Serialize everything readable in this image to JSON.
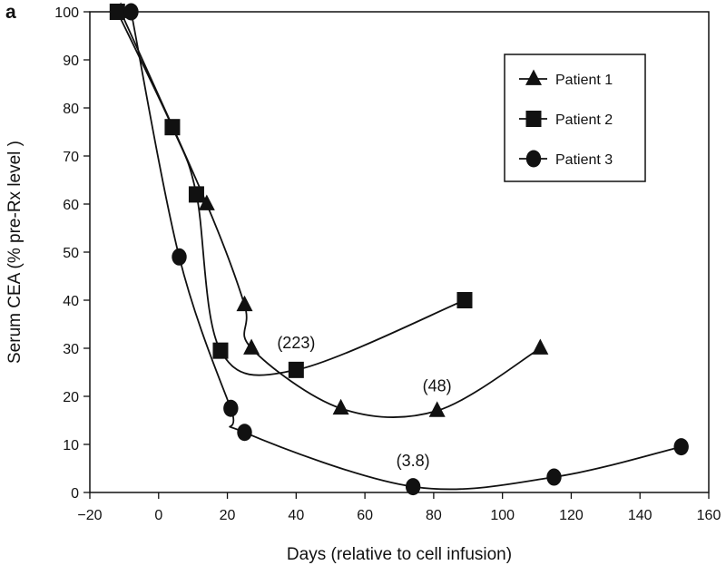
{
  "chart_data": {
    "type": "line",
    "panel_label": "a",
    "title": "",
    "xlabel": "Days (relative to cell infusion)",
    "ylabel": "Serum CEA (% pre-Rx level )",
    "xlim": [
      -20,
      160
    ],
    "ylim": [
      0,
      100
    ],
    "x_ticks": [
      -20,
      0,
      20,
      40,
      60,
      80,
      100,
      120,
      140,
      160
    ],
    "y_ticks": [
      0,
      10,
      20,
      30,
      40,
      50,
      60,
      70,
      80,
      90,
      100
    ],
    "grid": false,
    "legend_position": "top-right",
    "series": [
      {
        "name": "Patient 1",
        "marker": "triangle",
        "x": [
          -11,
          14,
          25,
          27,
          53,
          81,
          111
        ],
        "y": [
          100,
          60,
          39,
          30,
          17.5,
          17,
          30
        ]
      },
      {
        "name": "Patient 2",
        "marker": "square",
        "x": [
          -12,
          4,
          11,
          18,
          40,
          89
        ],
        "y": [
          100,
          76,
          62,
          29.5,
          25.5,
          40
        ]
      },
      {
        "name": "Patient 3",
        "marker": "circle",
        "x": [
          -8,
          6,
          21,
          25,
          74,
          115,
          152
        ],
        "y": [
          100,
          49,
          17.5,
          12.5,
          1.2,
          3.2,
          9.5
        ]
      }
    ],
    "annotations": [
      {
        "text": "(223)",
        "x": 40,
        "y": 30
      },
      {
        "text": "(48)",
        "x": 81,
        "y": 21
      },
      {
        "text": "(3.8)",
        "x": 74,
        "y": 5.5
      }
    ]
  }
}
